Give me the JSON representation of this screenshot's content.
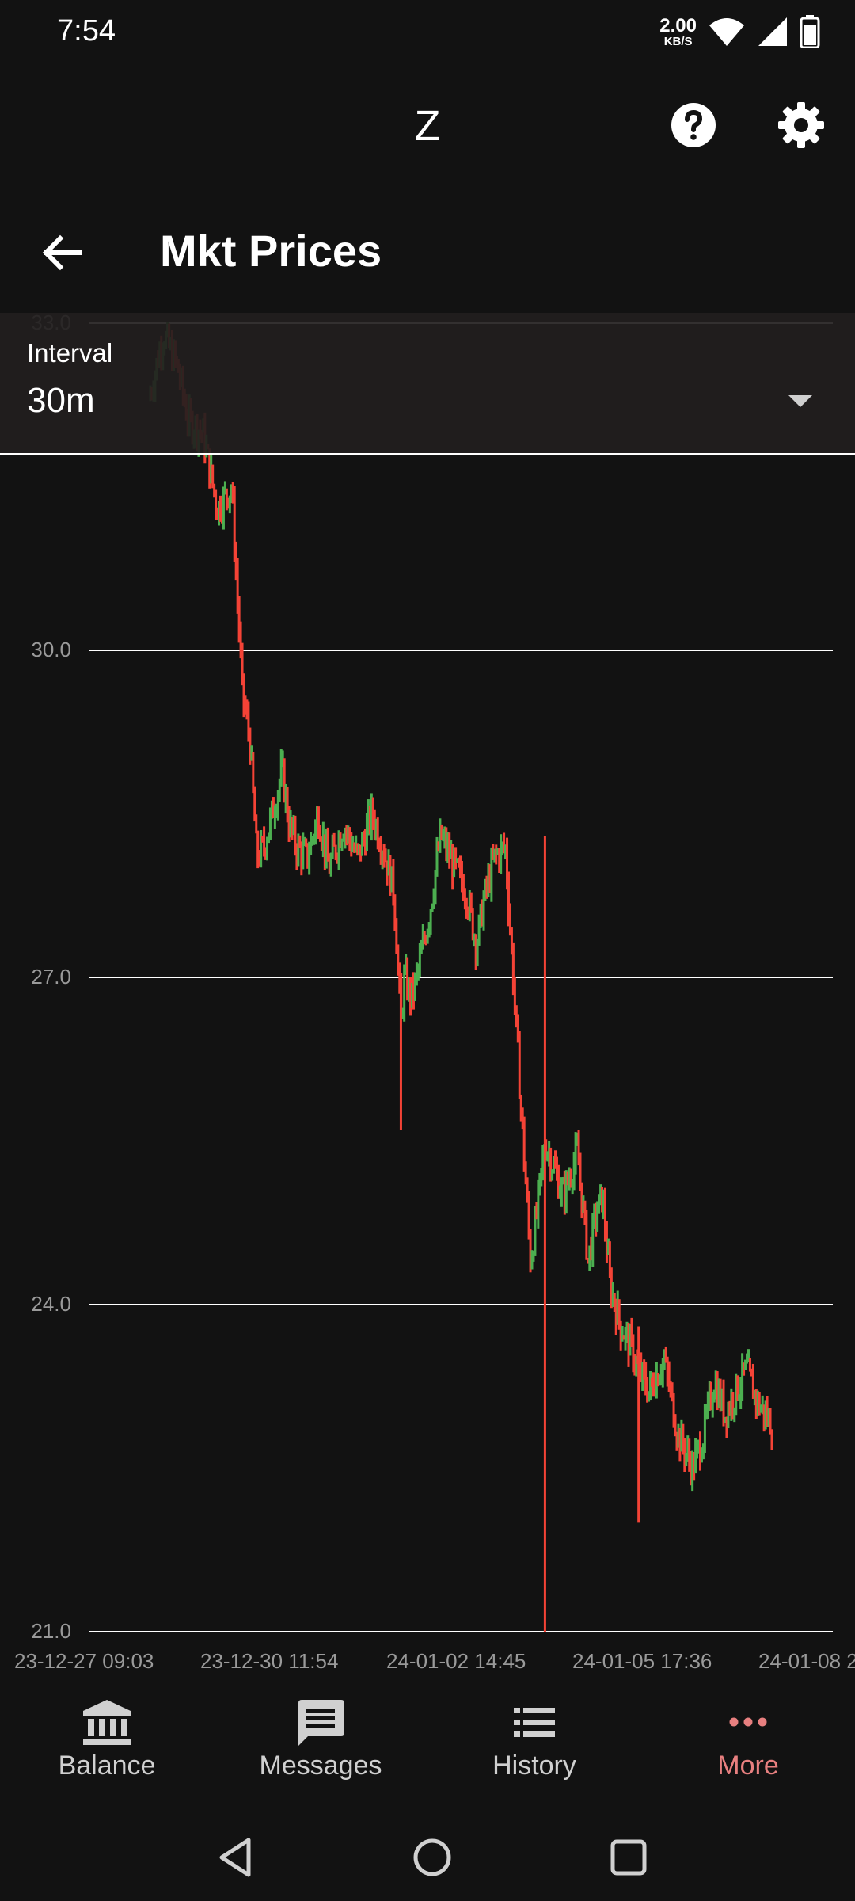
{
  "status_bar": {
    "time": "7:54",
    "net_speed_value": "2.00",
    "net_speed_unit": "KB/S"
  },
  "app_bar": {
    "title": "Z",
    "icons": [
      "help-icon",
      "settings-icon"
    ]
  },
  "page": {
    "title": "Mkt Prices",
    "back_icon": "arrow-left-icon"
  },
  "interval": {
    "label": "Interval",
    "value": "30m"
  },
  "chart_data": {
    "type": "candlestick",
    "y_ticks": [
      "33.0",
      "30.0",
      "27.0",
      "24.0",
      "21.0"
    ],
    "ylim": [
      21.0,
      33.0
    ],
    "x_tick_labels": [
      "23-12-27 09:03",
      "23-12-30 11:54",
      "24-01-02 14:45",
      "24-01-05 17:36",
      "24-01-08 2"
    ],
    "grid": true,
    "up_color": "#4caf50",
    "down_color": "#f44336",
    "series": {
      "t": [
        0.0,
        0.4,
        0.8,
        1.1,
        1.5,
        1.9,
        2.3,
        2.6,
        2.8,
        3.0,
        3.2,
        3.5,
        3.7,
        3.9,
        4.1,
        4.4,
        4.7,
        5.0,
        5.4,
        5.8,
        6.2,
        6.5,
        6.8,
        7.0,
        7.1,
        7.3,
        7.5,
        7.8,
        8.1,
        8.5,
        8.8,
        9.1,
        9.3,
        9.6,
        9.9,
        10.3,
        10.6,
        10.8,
        11.0,
        11.5,
        11.9,
        12.2,
        12.4,
        12.6,
        12.8,
        13.1,
        13.4,
        13.6,
        13.9,
        14.3,
        14.7,
        15.1,
        15.4,
        15.7,
        16.0,
        16.3,
        16.6,
        16.9,
        17.3
      ],
      "v": [
        32.3,
        32.9,
        32.6,
        32.1,
        32.0,
        31.3,
        31.5,
        29.6,
        29.2,
        28.1,
        28.2,
        28.6,
        28.9,
        28.4,
        28.2,
        28.1,
        28.5,
        28.0,
        28.4,
        28.1,
        28.5,
        28.2,
        27.8,
        26.6,
        27.0,
        26.8,
        27.1,
        27.6,
        28.3,
        28.0,
        27.8,
        27.3,
        27.7,
        28.1,
        28.2,
        26.0,
        24.4,
        24.9,
        25.5,
        25.0,
        25.4,
        24.4,
        24.8,
        25.0,
        24.2,
        23.8,
        23.6,
        23.4,
        23.2,
        23.5,
        22.8,
        22.5,
        22.8,
        23.3,
        23.0,
        23.2,
        23.4,
        23.1,
        22.9
      ]
    }
  },
  "bottom_nav": [
    {
      "label": "Balance",
      "icon": "bank-icon"
    },
    {
      "label": "Messages",
      "icon": "message-icon"
    },
    {
      "label": "History",
      "icon": "list-icon"
    },
    {
      "label": "More",
      "icon": "more-icon",
      "active": true
    }
  ],
  "system_nav": [
    "back-triangle-icon",
    "home-circle-icon",
    "recents-square-icon"
  ],
  "colors": {
    "background": "#121212",
    "panel": "#221e1e",
    "accent": "#e88080",
    "grid": "#ffffff",
    "tick_text": "#9a9a9a"
  }
}
